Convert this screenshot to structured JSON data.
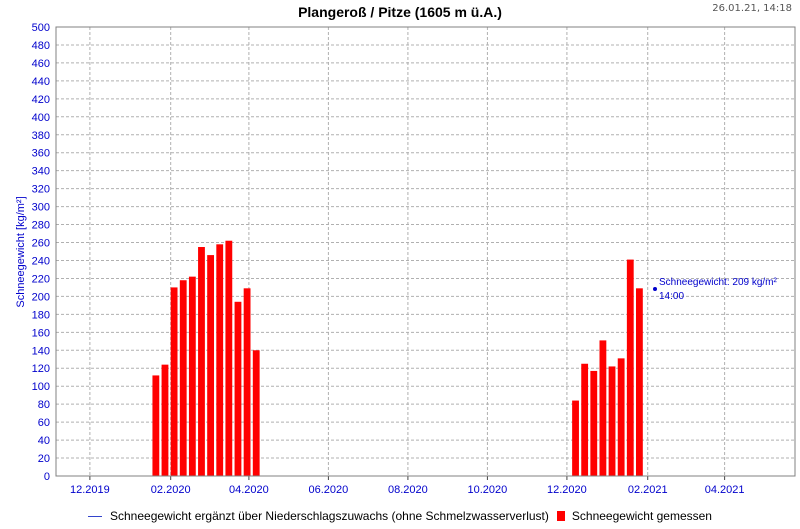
{
  "header": {
    "title": "Plangeroß / Pitze (1605 m ü.A.)",
    "timestamp": "26.01.21, 14:18"
  },
  "legend": {
    "line_label": "Schneegewicht ergänzt über Niederschlagszuwachs (ohne Schmelzwasserverlust)",
    "bar_label": "Schneegewicht gemessen"
  },
  "annotation": {
    "line1": "Schneegewicht: 209 kg/m²",
    "line2": "14:00"
  },
  "colors": {
    "bar": "#ff0000",
    "line": "#3344cc",
    "axis_label": "#0000cc",
    "grid": "#b0b0b0"
  },
  "chart_data": {
    "type": "bar",
    "title": "Plangeroß / Pitze (1605 m ü.A.)",
    "xlabel": "",
    "ylabel": "Schneegewicht [kg/m²]",
    "ylim": [
      0,
      500
    ],
    "yticks": [
      0,
      20,
      40,
      60,
      80,
      100,
      120,
      140,
      160,
      180,
      200,
      220,
      240,
      260,
      280,
      300,
      320,
      340,
      360,
      380,
      400,
      420,
      440,
      460,
      480,
      500
    ],
    "xlim": [
      "2019-11-05",
      "2021-05-25"
    ],
    "xticks": [
      {
        "date": "2019-12-01",
        "label": "12.2019"
      },
      {
        "date": "2020-02-01",
        "label": "02.2020"
      },
      {
        "date": "2020-04-01",
        "label": "04.2020"
      },
      {
        "date": "2020-06-01",
        "label": "06.2020"
      },
      {
        "date": "2020-08-01",
        "label": "08.2020"
      },
      {
        "date": "2020-10-01",
        "label": "10.2020"
      },
      {
        "date": "2020-12-01",
        "label": "12.2020"
      },
      {
        "date": "2021-02-01",
        "label": "02.2021"
      },
      {
        "date": "2021-04-01",
        "label": "04.2021"
      }
    ],
    "grid": true,
    "legend_position": "bottom",
    "series": [
      {
        "name": "Schneegewicht gemessen",
        "bar_width_days": 6,
        "points": [
          {
            "date": "2020-01-21",
            "value": 112
          },
          {
            "date": "2020-01-28",
            "value": 124
          },
          {
            "date": "2020-02-04",
            "value": 210
          },
          {
            "date": "2020-02-11",
            "value": 218
          },
          {
            "date": "2020-02-18",
            "value": 222
          },
          {
            "date": "2020-02-25",
            "value": 255
          },
          {
            "date": "2020-03-03",
            "value": 246
          },
          {
            "date": "2020-03-10",
            "value": 258
          },
          {
            "date": "2020-03-17",
            "value": 262
          },
          {
            "date": "2020-03-24",
            "value": 194
          },
          {
            "date": "2020-03-31",
            "value": 209
          },
          {
            "date": "2020-04-07",
            "value": 140
          },
          {
            "date": "2020-12-08",
            "value": 84
          },
          {
            "date": "2020-12-15",
            "value": 125
          },
          {
            "date": "2020-12-22",
            "value": 117
          },
          {
            "date": "2020-12-29",
            "value": 151
          },
          {
            "date": "2021-01-05",
            "value": 122
          },
          {
            "date": "2021-01-12",
            "value": 131
          },
          {
            "date": "2021-01-19",
            "value": 241
          },
          {
            "date": "2021-01-26",
            "value": 209
          }
        ]
      }
    ]
  }
}
